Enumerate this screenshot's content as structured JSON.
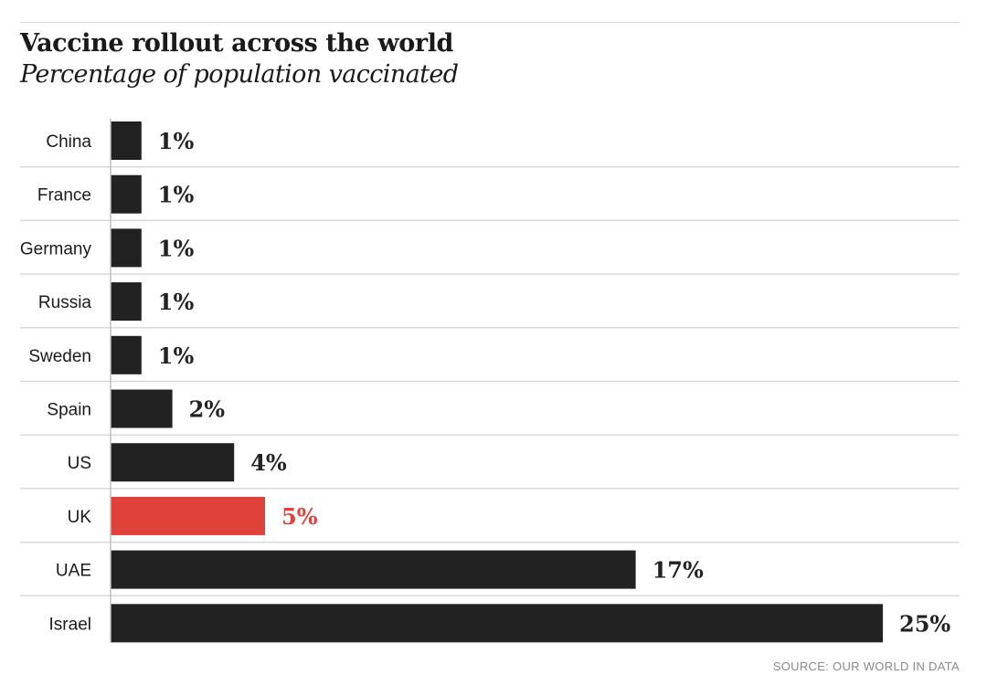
{
  "chart_data": {
    "type": "bar",
    "orientation": "horizontal",
    "title": "Vaccine rollout across the world",
    "subtitle": "Percentage of population vaccinated",
    "categories": [
      "China",
      "France",
      "Germany",
      "Russia",
      "Sweden",
      "Spain",
      "US",
      "UK",
      "UAE",
      "Israel"
    ],
    "values": [
      1,
      1,
      1,
      1,
      1,
      2,
      4,
      5,
      17,
      25
    ],
    "value_labels": [
      "1%",
      "1%",
      "1%",
      "1%",
      "1%",
      "2%",
      "4%",
      "5%",
      "17%",
      "25%"
    ],
    "highlight": "UK",
    "colors": {
      "bar": "#222222",
      "highlight": "#e0413b",
      "grid": "#d9d9d9",
      "text": "#1a1a1a"
    },
    "xlim": [
      0,
      25
    ],
    "xlabel": "",
    "ylabel": "",
    "grid": true,
    "legend": "none"
  },
  "source": "SOURCE: OUR WORLD IN DATA"
}
